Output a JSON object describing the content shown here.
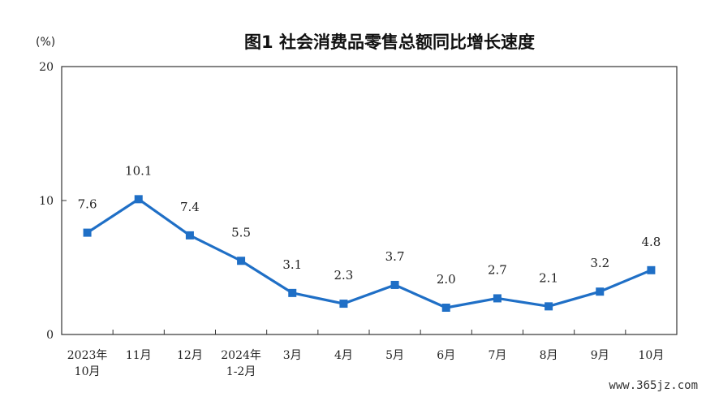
{
  "chart_data": {
    "type": "line",
    "title": "图1  社会消费品零售总额同比增长速度",
    "y_unit": "(%)",
    "categories": [
      [
        "2023年",
        "10月"
      ],
      [
        "11月"
      ],
      [
        "12月"
      ],
      [
        "2024年",
        "1-2月"
      ],
      [
        "3月"
      ],
      [
        "4月"
      ],
      [
        "5月"
      ],
      [
        "6月"
      ],
      [
        "7月"
      ],
      [
        "8月"
      ],
      [
        "9月"
      ],
      [
        "10月"
      ]
    ],
    "values": [
      7.6,
      10.1,
      7.4,
      5.5,
      3.1,
      2.3,
      3.7,
      2.0,
      2.7,
      2.1,
      3.2,
      4.8
    ],
    "data_labels": [
      "7.6",
      "10.1",
      "7.4",
      "5.5",
      "3.1",
      "2.3",
      "3.7",
      "2.0",
      "2.7",
      "2.1",
      "3.2",
      "4.8"
    ],
    "ylim": [
      0,
      20
    ],
    "yticks": [
      "0",
      "10",
      "20"
    ],
    "grid": false,
    "line_color": "#1f6fc6"
  },
  "watermark": "www.365jz.com"
}
